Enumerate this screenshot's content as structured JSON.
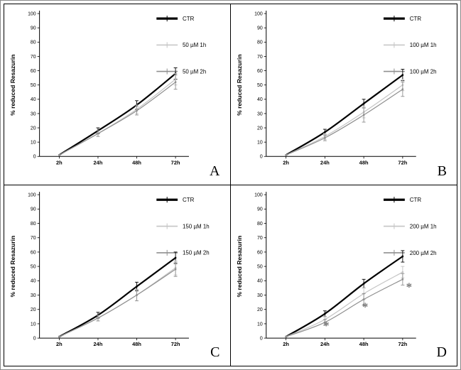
{
  "figure": {
    "background": "#ffffff",
    "panel_letters": [
      "A",
      "B",
      "C",
      "D"
    ]
  },
  "colors": {
    "ctr": "#000000",
    "treat_1h": "#c4c4c4",
    "treat_2h": "#8f8f8f",
    "asterisk": "#777777",
    "axis": "#000000"
  },
  "chart_data": [
    {
      "type": "line",
      "panel": "A",
      "ylabel": "% reduced Resazurin",
      "categories": [
        "2h",
        "24h",
        "48h",
        "72h"
      ],
      "ylim": [
        0,
        100
      ],
      "ytick_step": 10,
      "legend_position": "top-right",
      "grid": false,
      "series": [
        {
          "name": "CTR",
          "color": "#000000",
          "line_width": 2.2,
          "values": [
            1,
            18,
            36,
            58
          ],
          "errors": [
            0,
            2,
            3,
            4
          ]
        },
        {
          "name": "50 µM 1h",
          "color": "#c4c4c4",
          "line_width": 1.2,
          "values": [
            1,
            16,
            33,
            54
          ],
          "errors": [
            0,
            2,
            3,
            4
          ]
        },
        {
          "name": "50 µM 2h",
          "color": "#8f8f8f",
          "line_width": 1.2,
          "values": [
            1,
            16,
            32,
            52
          ],
          "errors": [
            0,
            2,
            3,
            5
          ]
        }
      ],
      "annotations": []
    },
    {
      "type": "line",
      "panel": "B",
      "ylabel": "% reduced Resazurin",
      "categories": [
        "2h",
        "24h",
        "48h",
        "72h"
      ],
      "ylim": [
        0,
        100
      ],
      "ytick_step": 10,
      "legend_position": "top-right",
      "grid": false,
      "series": [
        {
          "name": "CTR",
          "color": "#000000",
          "line_width": 2.2,
          "values": [
            1,
            17,
            37,
            57
          ],
          "errors": [
            0,
            2,
            3,
            4
          ]
        },
        {
          "name": "100 µM 1h",
          "color": "#c4c4c4",
          "line_width": 1.2,
          "values": [
            1,
            14,
            31,
            50
          ],
          "errors": [
            0,
            2,
            4,
            4
          ]
        },
        {
          "name": "100 µM 2h",
          "color": "#8f8f8f",
          "line_width": 1.2,
          "values": [
            1,
            13,
            29,
            47
          ],
          "errors": [
            0,
            2,
            5,
            5
          ]
        }
      ],
      "annotations": []
    },
    {
      "type": "line",
      "panel": "C",
      "ylabel": "% reduced Resazurin",
      "categories": [
        "2h",
        "24h",
        "48h",
        "72h"
      ],
      "ylim": [
        0,
        100
      ],
      "ytick_step": 10,
      "legend_position": "top-right",
      "grid": false,
      "series": [
        {
          "name": "CTR",
          "color": "#000000",
          "line_width": 2.2,
          "values": [
            1,
            16,
            36,
            56
          ],
          "errors": [
            0,
            2,
            3,
            4
          ]
        },
        {
          "name": "150 µM 1h",
          "color": "#c4c4c4",
          "line_width": 1.2,
          "values": [
            1,
            14,
            30,
            49
          ],
          "errors": [
            0,
            2,
            4,
            5
          ]
        },
        {
          "name": "150 µM 2h",
          "color": "#8f8f8f",
          "line_width": 1.2,
          "values": [
            1,
            14,
            30,
            48
          ],
          "errors": [
            0,
            2,
            4,
            5
          ]
        }
      ],
      "annotations": []
    },
    {
      "type": "line",
      "panel": "D",
      "ylabel": "% reduced Resazurin",
      "categories": [
        "2h",
        "24h",
        "48h",
        "72h"
      ],
      "ylim": [
        0,
        100
      ],
      "ytick_step": 10,
      "legend_position": "top-right",
      "grid": false,
      "series": [
        {
          "name": "CTR",
          "color": "#000000",
          "line_width": 2.2,
          "values": [
            1,
            17,
            38,
            57
          ],
          "errors": [
            0,
            2,
            3,
            4
          ]
        },
        {
          "name": "200 µM 1h",
          "color": "#c4c4c4",
          "line_width": 1.2,
          "values": [
            1,
            13,
            31,
            46
          ],
          "errors": [
            0,
            2,
            4,
            4
          ]
        },
        {
          "name": "200 µM 2h",
          "color": "#8f8f8f",
          "line_width": 1.2,
          "values": [
            1,
            11,
            27,
            41
          ],
          "errors": [
            0,
            2,
            4,
            4
          ]
        }
      ],
      "annotations": [
        {
          "category": "24h",
          "y": 6,
          "dx": 2,
          "text": "*"
        },
        {
          "category": "48h",
          "y": 19,
          "dx": 2,
          "text": "*"
        },
        {
          "category": "72h",
          "y": 33,
          "dx": 9,
          "text": "*"
        }
      ]
    }
  ]
}
